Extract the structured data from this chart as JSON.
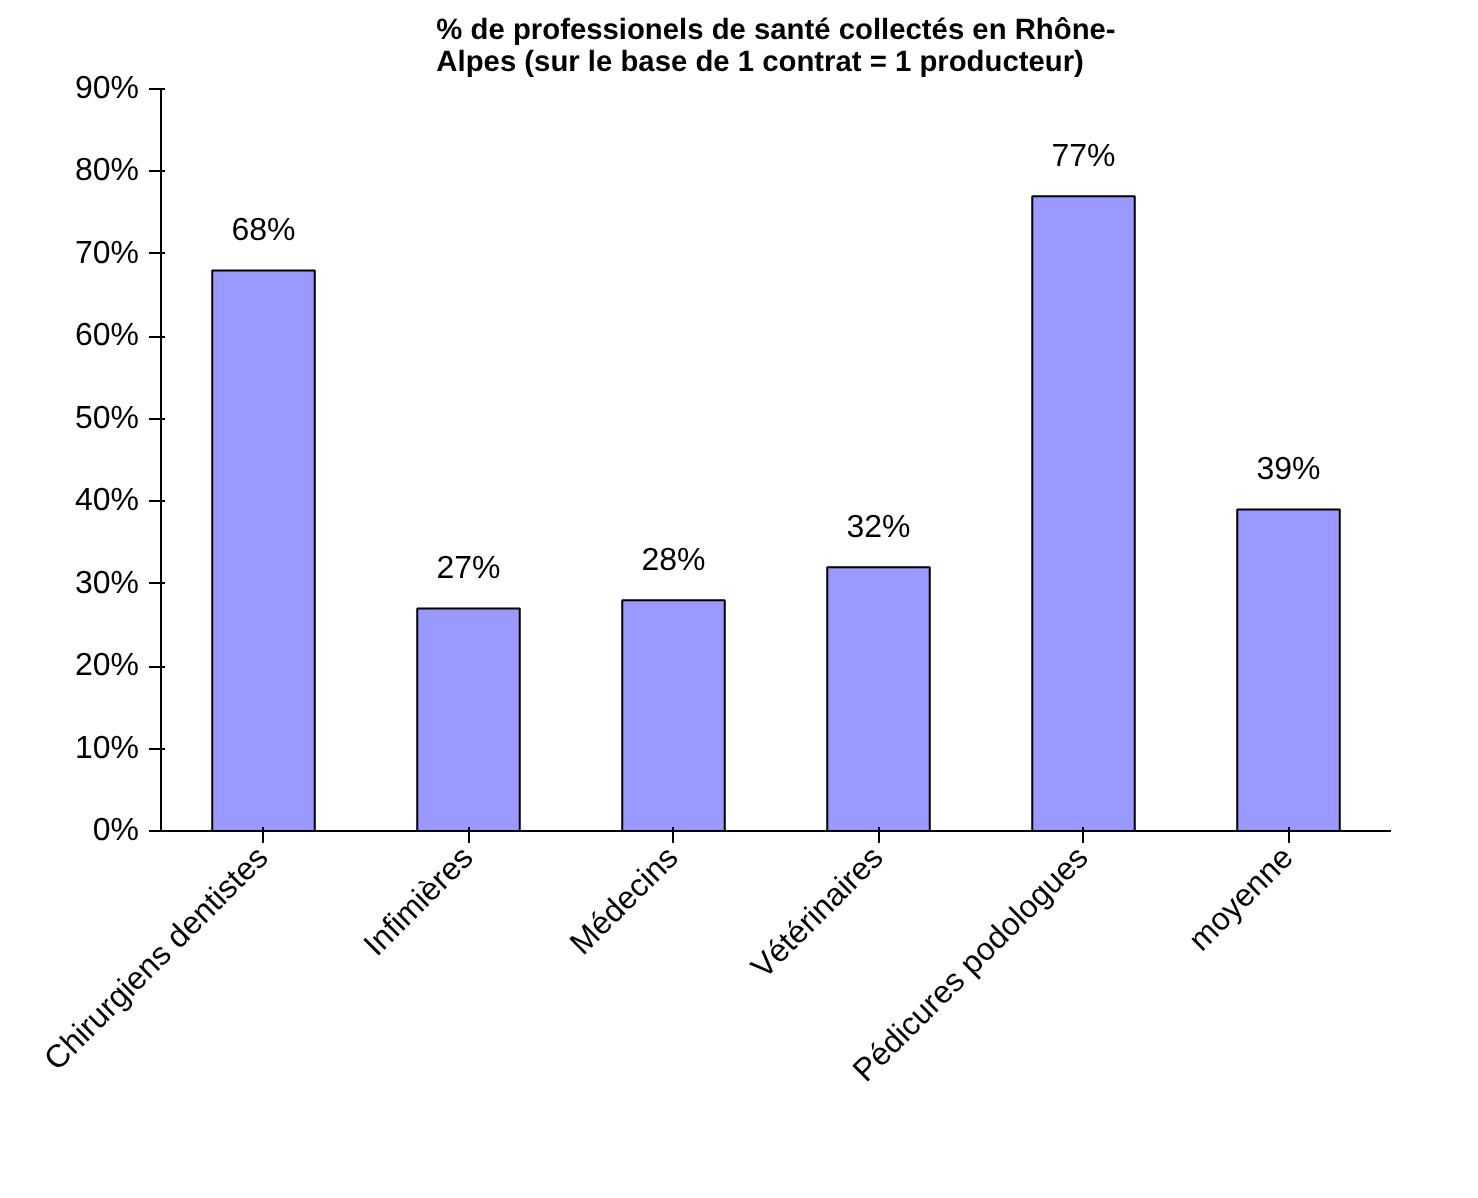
{
  "chart_data": {
    "type": "bar",
    "title": "% de professionels de santé collectés en Rhône-\nAlpes (sur le base de 1 contrat = 1 producteur)",
    "categories": [
      "Chirurgiens dentistes",
      "Infimières",
      "Médecins",
      "Vétérinaires",
      "Pédicures podologues",
      "moyenne"
    ],
    "values": [
      68,
      27,
      28,
      32,
      77,
      39
    ],
    "value_labels": [
      "68%",
      "27%",
      "28%",
      "32%",
      "77%",
      "39%"
    ],
    "color": "#9999ff",
    "ylim": [
      0,
      90
    ],
    "yticks": [
      {
        "value": 0,
        "label": "0%"
      },
      {
        "value": 10,
        "label": "10%"
      },
      {
        "value": 20,
        "label": "20%"
      },
      {
        "value": 30,
        "label": "30%"
      },
      {
        "value": 40,
        "label": "40%"
      },
      {
        "value": 50,
        "label": "50%"
      },
      {
        "value": 60,
        "label": "60%"
      },
      {
        "value": 70,
        "label": "70%"
      },
      {
        "value": 80,
        "label": "80%"
      },
      {
        "value": 90,
        "label": "90%"
      }
    ],
    "grid": false
  }
}
